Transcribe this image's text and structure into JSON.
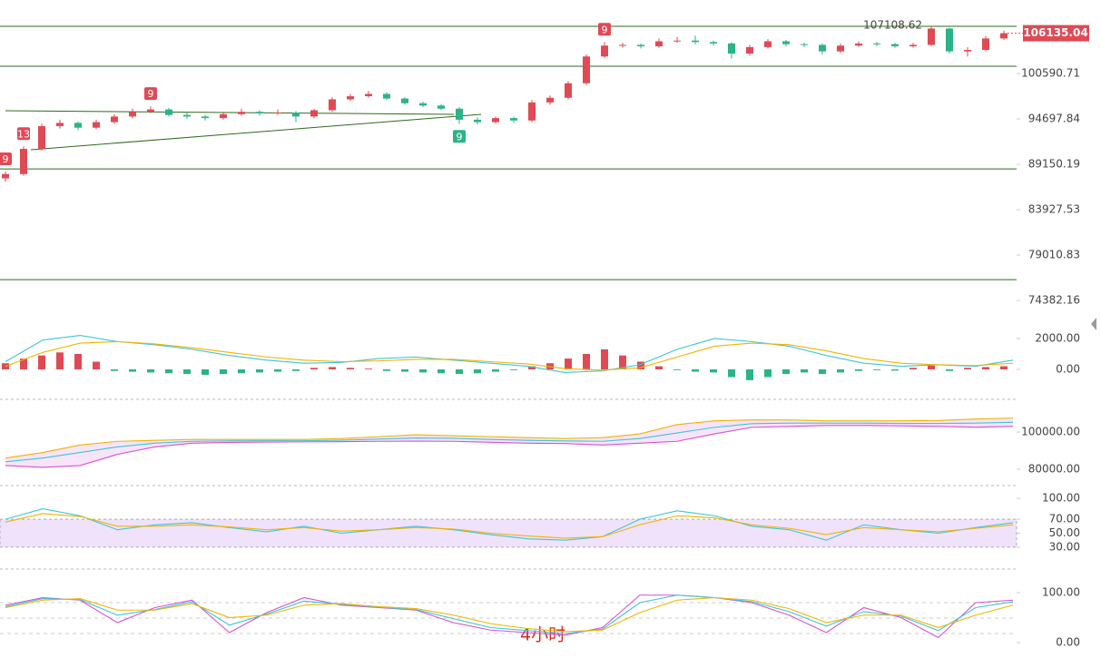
{
  "chart_data": [
    {
      "type": "candlestick",
      "log_scale": true,
      "ylim": [
        73140,
        110930
      ],
      "yticks": [
        100590.71,
        94697.84,
        89150.19,
        83927.53,
        79010.83,
        74382.16
      ],
      "levels": [
        107110,
        101570,
        88610,
        76470
      ],
      "level_color": "#2e6b1e",
      "up_color": "#e04a55",
      "down_color": "#2bb38a",
      "candles": [
        {
          "open": 87500,
          "high": 88300,
          "low": 87100,
          "close": 88000,
          "td_up": "9"
        },
        {
          "open": 88000,
          "high": 91300,
          "low": 87800,
          "close": 91000,
          "td_up": "13"
        },
        {
          "open": 91000,
          "high": 94100,
          "low": 90800,
          "close": 93800
        },
        {
          "open": 93800,
          "high": 94600,
          "low": 93500,
          "close": 94200
        },
        {
          "open": 94200,
          "high": 94400,
          "low": 93300,
          "close": 93600
        },
        {
          "open": 93600,
          "high": 94600,
          "low": 93400,
          "close": 94300
        },
        {
          "open": 94300,
          "high": 95300,
          "low": 94100,
          "close": 95000
        },
        {
          "open": 95000,
          "high": 96000,
          "low": 94800,
          "close": 95600
        },
        {
          "open": 95600,
          "high": 96300,
          "low": 95400,
          "close": 95900,
          "td_up": "9"
        },
        {
          "open": 95900,
          "high": 96100,
          "low": 95000,
          "close": 95200
        },
        {
          "open": 95200,
          "high": 95500,
          "low": 94700,
          "close": 95000
        },
        {
          "open": 95000,
          "high": 95200,
          "low": 94500,
          "close": 94800
        },
        {
          "open": 94800,
          "high": 95600,
          "low": 94600,
          "close": 95300
        },
        {
          "open": 95300,
          "high": 96000,
          "low": 95100,
          "close": 95600
        },
        {
          "open": 95600,
          "high": 95800,
          "low": 95100,
          "close": 95400
        },
        {
          "open": 95400,
          "high": 95900,
          "low": 95200,
          "close": 95500
        },
        {
          "open": 95500,
          "high": 95700,
          "low": 94300,
          "close": 95000
        },
        {
          "open": 95000,
          "high": 96000,
          "low": 94800,
          "close": 95800
        },
        {
          "open": 95800,
          "high": 97500,
          "low": 95600,
          "close": 97200
        },
        {
          "open": 97200,
          "high": 97900,
          "low": 97000,
          "close": 97600
        },
        {
          "open": 97600,
          "high": 98300,
          "low": 97400,
          "close": 97900
        },
        {
          "open": 97900,
          "high": 98100,
          "low": 97100,
          "close": 97300
        },
        {
          "open": 97300,
          "high": 97500,
          "low": 96500,
          "close": 96700
        },
        {
          "open": 96700,
          "high": 96900,
          "low": 96200,
          "close": 96400
        },
        {
          "open": 96400,
          "high": 96600,
          "low": 95800,
          "close": 96000
        },
        {
          "open": 96000,
          "high": 96200,
          "low": 94100,
          "close": 94600,
          "td_down": "9"
        },
        {
          "open": 94600,
          "high": 94900,
          "low": 94000,
          "close": 94300
        },
        {
          "open": 94300,
          "high": 95000,
          "low": 94100,
          "close": 94800
        },
        {
          "open": 94800,
          "high": 95000,
          "low": 94200,
          "close": 94500
        },
        {
          "open": 94500,
          "high": 97100,
          "low": 94300,
          "close": 96800
        },
        {
          "open": 96800,
          "high": 97700,
          "low": 96500,
          "close": 97400
        },
        {
          "open": 97400,
          "high": 99600,
          "low": 97200,
          "close": 99300
        },
        {
          "open": 99300,
          "high": 103200,
          "low": 99100,
          "close": 102900
        },
        {
          "open": 102900,
          "high": 104900,
          "low": 102700,
          "close": 104400,
          "td_up": "9"
        },
        {
          "open": 104400,
          "high": 104800,
          "low": 104100,
          "close": 104500
        },
        {
          "open": 104500,
          "high": 104700,
          "low": 104000,
          "close": 104300
        },
        {
          "open": 104300,
          "high": 105400,
          "low": 104100,
          "close": 105000
        },
        {
          "open": 105000,
          "high": 105600,
          "low": 104800,
          "close": 105100
        },
        {
          "open": 105100,
          "high": 105800,
          "low": 104600,
          "close": 104900
        },
        {
          "open": 104900,
          "high": 105100,
          "low": 104400,
          "close": 104700
        },
        {
          "open": 104700,
          "high": 104900,
          "low": 102600,
          "close": 103300
        },
        {
          "open": 103300,
          "high": 104500,
          "low": 103000,
          "close": 104200
        },
        {
          "open": 104200,
          "high": 105300,
          "low": 104000,
          "close": 105000
        },
        {
          "open": 105000,
          "high": 105200,
          "low": 104300,
          "close": 104600
        },
        {
          "open": 104600,
          "high": 104800,
          "low": 104200,
          "close": 104500
        },
        {
          "open": 104500,
          "high": 104700,
          "low": 103200,
          "close": 103600
        },
        {
          "open": 103600,
          "high": 104700,
          "low": 103400,
          "close": 104400
        },
        {
          "open": 104400,
          "high": 105000,
          "low": 104200,
          "close": 104700
        },
        {
          "open": 104700,
          "high": 104900,
          "low": 104300,
          "close": 104600
        },
        {
          "open": 104600,
          "high": 104800,
          "low": 104100,
          "close": 104300
        },
        {
          "open": 104300,
          "high": 104800,
          "low": 104100,
          "close": 104500
        },
        {
          "open": 104500,
          "high": 107108.62,
          "low": 104300,
          "close": 106800
        },
        {
          "open": 106800,
          "high": 106900,
          "low": 103300,
          "close": 103600
        },
        {
          "open": 103600,
          "high": 104200,
          "low": 102900,
          "close": 103800
        },
        {
          "open": 103800,
          "high": 105700,
          "low": 103600,
          "close": 105400
        },
        {
          "open": 105400,
          "high": 106500,
          "low": 105200,
          "close": 106135.04
        }
      ]
    },
    {
      "type": "macd",
      "ylim": [
        -1940,
        3350
      ],
      "yticks": [
        {
          "value": 2000,
          "label": "2000.00"
        },
        {
          "value": 0,
          "label": "0.00"
        }
      ],
      "histogram": [
        400,
        700,
        900,
        1100,
        1000,
        500,
        -100,
        -150,
        -200,
        -250,
        -300,
        -350,
        -300,
        -250,
        -200,
        -150,
        -100,
        100,
        150,
        100,
        50,
        -100,
        -150,
        -200,
        -250,
        -300,
        -250,
        -150,
        -50,
        200,
        400,
        700,
        1000,
        1300,
        900,
        500,
        200,
        -50,
        -150,
        -200,
        -500,
        -700,
        -500,
        -300,
        -200,
        -300,
        -200,
        -100,
        -50,
        -80,
        100,
        250,
        -100,
        100,
        150,
        200
      ],
      "series": [
        {
          "color": "#3cc6d6",
          "values": [
            500,
            1900,
            2200,
            1800,
            1600,
            1300,
            900,
            600,
            400,
            450,
            700,
            800,
            600,
            400,
            200,
            -200,
            -100,
            300,
            1300,
            2000,
            1800,
            1500,
            900,
            400,
            200,
            300,
            200,
            600
          ]
        },
        {
          "color": "#f0b400",
          "values": [
            200,
            1100,
            1700,
            1800,
            1650,
            1400,
            1100,
            800,
            600,
            500,
            550,
            650,
            650,
            500,
            350,
            50,
            -50,
            100,
            800,
            1500,
            1700,
            1600,
            1200,
            700,
            400,
            300,
            250,
            400
          ]
        }
      ]
    },
    {
      "type": "line",
      "ylim": [
        73660,
        115120
      ],
      "yticks": [
        {
          "value": 100000,
          "label": "100000.00"
        },
        {
          "value": 80000,
          "label": "80000.00"
        }
      ],
      "band_fill": "#f3d8f5",
      "series": [
        {
          "color": "#f0b400",
          "values": [
            86000,
            89000,
            93000,
            95000,
            95500,
            96000,
            96000,
            96000,
            96000,
            96500,
            97500,
            98500,
            98000,
            97500,
            97000,
            96500,
            97000,
            99000,
            104000,
            106000,
            106500,
            106500,
            106000,
            106000,
            106000,
            106200,
            107000,
            107500
          ]
        },
        {
          "color": "#3cc6d6",
          "values": [
            84000,
            86000,
            89000,
            92000,
            94000,
            95000,
            95200,
            95300,
            95300,
            95600,
            96200,
            96800,
            96600,
            96000,
            95500,
            95200,
            95000,
            96500,
            99500,
            102500,
            104500,
            104800,
            104800,
            104800,
            104600,
            104600,
            104800,
            105200
          ]
        },
        {
          "color": "#d94fd6",
          "values": [
            82000,
            81000,
            82000,
            88000,
            92000,
            94000,
            94400,
            94600,
            94700,
            94800,
            95000,
            95100,
            95000,
            94500,
            94000,
            93800,
            93000,
            94000,
            95000,
            99000,
            102500,
            103000,
            103500,
            103500,
            103300,
            103000,
            102600,
            103000
          ]
        }
      ]
    },
    {
      "type": "line",
      "ylim": [
        0,
        111.7
      ],
      "yticks": [
        {
          "value": 100,
          "label": "100.00"
        },
        {
          "value": 70,
          "label": "70.00"
        },
        {
          "value": 50,
          "label": "50.00"
        },
        {
          "value": 30,
          "label": "30.00"
        }
      ],
      "band": [
        30,
        70
      ],
      "band_fill": "#f0e2fb",
      "series": [
        {
          "color": "#3cc6d6",
          "values": [
            70,
            85,
            75,
            55,
            62,
            65,
            58,
            52,
            60,
            50,
            55,
            60,
            55,
            48,
            42,
            40,
            45,
            70,
            82,
            75,
            60,
            55,
            40,
            62,
            55,
            50,
            58,
            65
          ]
        },
        {
          "color": "#f0b400",
          "values": [
            66,
            78,
            74,
            60,
            60,
            62,
            59,
            55,
            58,
            53,
            55,
            58,
            56,
            50,
            46,
            43,
            45,
            62,
            75,
            72,
            62,
            57,
            48,
            58,
            55,
            52,
            57,
            62
          ]
        }
      ]
    },
    {
      "type": "line",
      "ylim": [
        -23.6,
        141.8
      ],
      "yticks": [
        {
          "value": 100,
          "label": "100.00"
        },
        {
          "value": 0,
          "label": "0.00"
        }
      ],
      "series": [
        {
          "color": "#d94fd6",
          "values": [
            75,
            90,
            85,
            40,
            70,
            85,
            20,
            60,
            90,
            75,
            70,
            65,
            40,
            25,
            20,
            15,
            30,
            95,
            95,
            90,
            80,
            55,
            20,
            70,
            50,
            10,
            80,
            85
          ]
        },
        {
          "color": "#3cc6d6",
          "values": [
            72,
            88,
            86,
            55,
            66,
            82,
            35,
            57,
            83,
            77,
            71,
            66,
            48,
            30,
            24,
            18,
            27,
            80,
            95,
            90,
            82,
            62,
            33,
            62,
            53,
            24,
            70,
            82
          ]
        },
        {
          "color": "#f0b400",
          "values": [
            70,
            85,
            88,
            65,
            65,
            78,
            50,
            55,
            75,
            78,
            72,
            68,
            55,
            38,
            28,
            22,
            25,
            60,
            85,
            90,
            85,
            68,
            40,
            55,
            55,
            30,
            55,
            75
          ]
        }
      ]
    }
  ],
  "timeframe": "4小时"
}
